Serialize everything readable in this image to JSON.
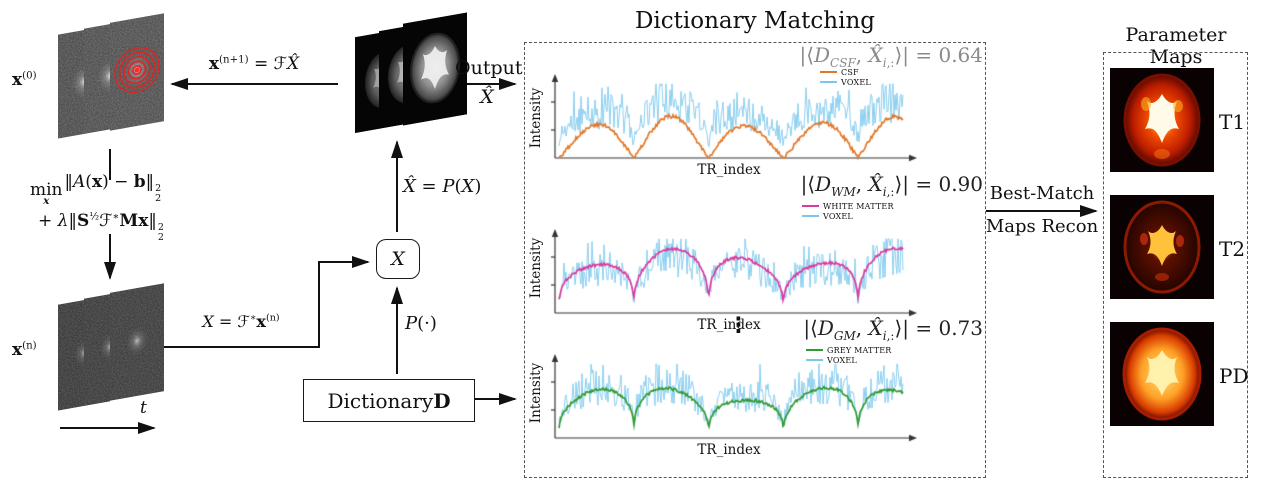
{
  "left": {
    "x0_label_html": "<b>x</b><sup>(0)</sup>",
    "update_eq_html": "<b>x</b><sup>(n+1)</sup> = <span class=\"cal\">ℱX̂</span>",
    "eq_line1_html": "<span class=\"minx\">min<span class=\"cal\">x</span></span>‖<span class=\"cal\">A</span>(<b>x</b>) − <b>b</b>‖<span class=\"ss\"><span>2</span><span>2</span></span>",
    "eq_line2_html": "+ <i>λ</i>‖<b>S</b><sup>½</sup><span class=\"cal\">ℱ</span><sup>∗</sup><b>Mx</b>‖<span class=\"ss\"><span>2</span><span>2</span></span>",
    "xn_label_html": "<b>x</b><sup>(n)</sup>",
    "t_label_html": "<i>t</i>",
    "xform_eq_html": "<span class=\"cal\">X</span> = <span class=\"cal\">ℱ</span><sup>∗</sup><b>x</b><sup>(n)</sup>"
  },
  "center": {
    "output_label": "Output",
    "output_sym_html": "<span class=\"cal\">X̂</span>",
    "proj_eq_html": "<span class=\"cal\">X̂</span> = <span class=\"cal\">P</span>(<span class=\"cal\">X</span>)",
    "xbox_html": "<span class=\"cal\">X</span>",
    "pop_html": "<span class=\"cal\">P</span>(·)",
    "dictionary_label_html": "Dictionary <b>D</b>"
  },
  "matching": {
    "title": "Dictionary Matching",
    "dots": "⋮",
    "plots": [
      {
        "formula_html": "|⟨<span class=\"cal\">D</span><sub><i>CSF</i></sub>, <span class=\"cal\">X̂</span><sub><i>i</i>,:</sub>⟩| = 0.64",
        "match_value": 0.64,
        "ylabel": "Intensity",
        "xlabel": "TR_index",
        "legend": [
          {
            "label": "CSF",
            "color": "#e0782b"
          },
          {
            "label": "VOXEL",
            "color": "#79c7ec"
          }
        ],
        "waveform": {
          "style": "arch",
          "scale": 0.58,
          "seed": 11
        }
      },
      {
        "formula_html": "|⟨<span class=\"cal\">D</span><sub><i>WM</i></sub>, <span class=\"cal\">X̂</span><sub><i>i</i>,:</sub>⟩| = 0.90",
        "match_value": 0.9,
        "ylabel": "Intensity",
        "xlabel": "TR_index",
        "legend": [
          {
            "label": "WHITE MATTER",
            "color": "#d93ba0"
          },
          {
            "label": "VOXEL",
            "color": "#79c7ec"
          }
        ],
        "waveform": {
          "style": "track",
          "scale": 0.9,
          "seed": 23
        }
      },
      {
        "formula_html": "|⟨<span class=\"cal\">D</span><sub><i>GM</i></sub>, <span class=\"cal\">X̂</span><sub><i>i</i>,:</sub>⟩| = 0.73",
        "match_value": 0.73,
        "ylabel": "Intensity",
        "xlabel": "TR_index",
        "legend": [
          {
            "label": "GREY MATTER",
            "color": "#2f9b33"
          },
          {
            "label": "VOXEL",
            "color": "#79c7ec"
          }
        ],
        "waveform": {
          "style": "track",
          "scale": 0.73,
          "seed": 37
        }
      }
    ]
  },
  "right": {
    "arrow_label_top": "Best-Match",
    "arrow_label_bottom": "Maps Recon",
    "title": "Parameter Maps",
    "maps": [
      {
        "label": "T1"
      },
      {
        "label": "T2"
      },
      {
        "label": "PD"
      }
    ]
  }
}
